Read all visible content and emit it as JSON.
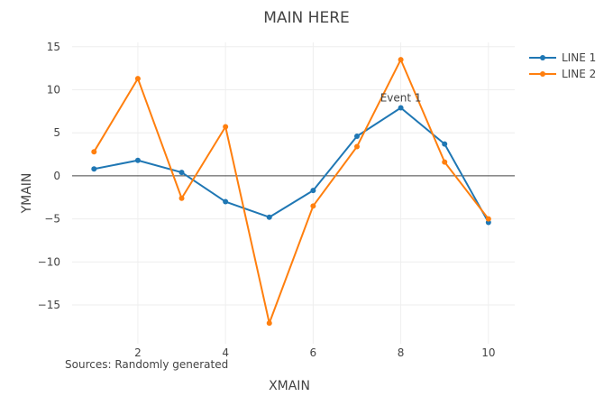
{
  "chart_data": {
    "type": "line",
    "title": "MAIN HERE",
    "xlabel": "XMAIN",
    "ylabel": "YMAIN",
    "xlim": [
      0.5,
      10.6
    ],
    "ylim": [
      -19.5,
      15.5
    ],
    "xticks": [
      2,
      4,
      6,
      8,
      10
    ],
    "yticks": [
      15,
      10,
      5,
      0,
      -5,
      -10,
      -15
    ],
    "ytick_labels": [
      "15",
      "10",
      "5",
      "0",
      "−5",
      "−10",
      "−15"
    ],
    "grid": true,
    "zero_line": true,
    "legend_position": "top-right",
    "x": [
      1,
      2,
      3,
      4,
      5,
      6,
      7,
      8,
      9,
      10
    ],
    "series": [
      {
        "name": "LINE 1",
        "color": "#1f77b4",
        "values": [
          0.8,
          1.8,
          0.4,
          -3.0,
          -4.8,
          -1.7,
          4.6,
          7.9,
          3.7,
          -5.4
        ]
      },
      {
        "name": "LINE 2",
        "color": "#ff7f0e",
        "values": [
          2.8,
          11.3,
          -2.6,
          5.7,
          -17.1,
          -3.5,
          3.4,
          13.5,
          1.6,
          -5.0
        ]
      }
    ],
    "annotations": [
      {
        "text": "Event 1",
        "x": 8,
        "y": 7.9
      }
    ],
    "source_note": "Sources: Randomly generated"
  }
}
